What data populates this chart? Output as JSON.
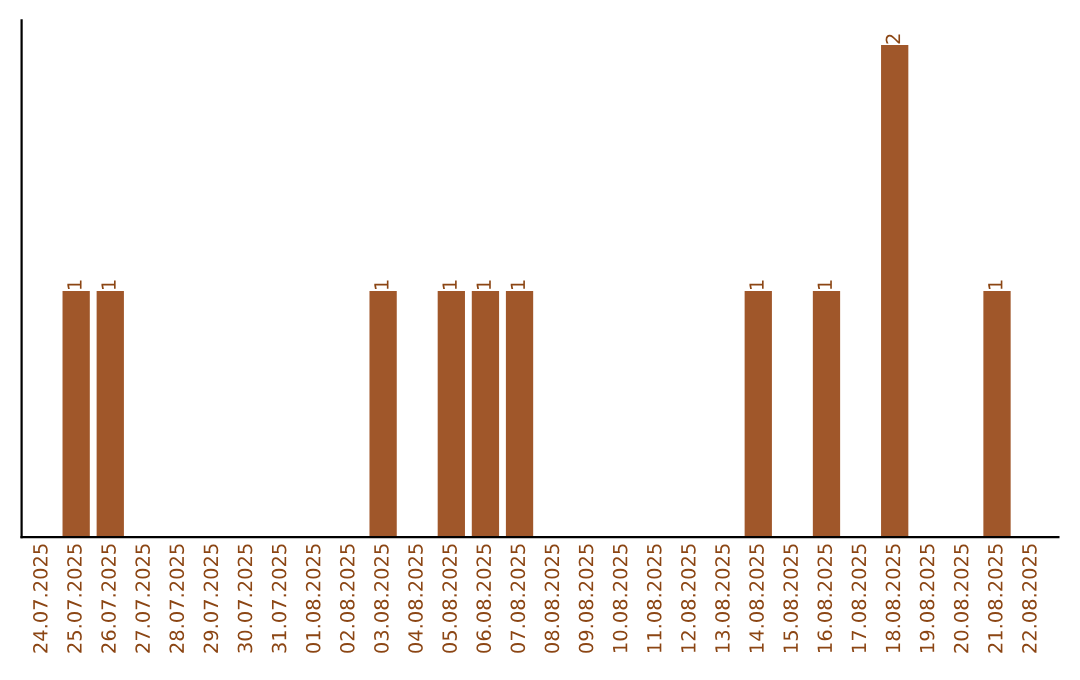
{
  "chart_data": {
    "type": "bar",
    "categories": [
      "24.07.2025",
      "25.07.2025",
      "26.07.2025",
      "27.07.2025",
      "28.07.2025",
      "29.07.2025",
      "30.07.2025",
      "31.07.2025",
      "01.08.2025",
      "02.08.2025",
      "03.08.2025",
      "04.08.2025",
      "05.08.2025",
      "06.08.2025",
      "07.08.2025",
      "08.08.2025",
      "09.08.2025",
      "10.08.2025",
      "11.08.2025",
      "12.08.2025",
      "13.08.2025",
      "14.08.2025",
      "15.08.2025",
      "16.08.2025",
      "17.08.2025",
      "18.08.2025",
      "19.08.2025",
      "20.08.2025",
      "21.08.2025",
      "22.08.2025"
    ],
    "values": [
      0,
      1,
      1,
      0,
      0,
      0,
      0,
      0,
      0,
      0,
      1,
      0,
      1,
      1,
      1,
      0,
      0,
      0,
      0,
      0,
      0,
      1,
      0,
      1,
      0,
      2,
      0,
      0,
      1,
      0
    ],
    "value_labels": [
      null,
      "1",
      "1",
      null,
      null,
      null,
      null,
      null,
      null,
      null,
      "1",
      null,
      "1",
      "1",
      "1",
      null,
      null,
      null,
      null,
      null,
      null,
      "1",
      null,
      "1",
      null,
      "2",
      null,
      null,
      "1",
      null
    ],
    "color": "#a0572a",
    "grid": false,
    "legend": false
  }
}
